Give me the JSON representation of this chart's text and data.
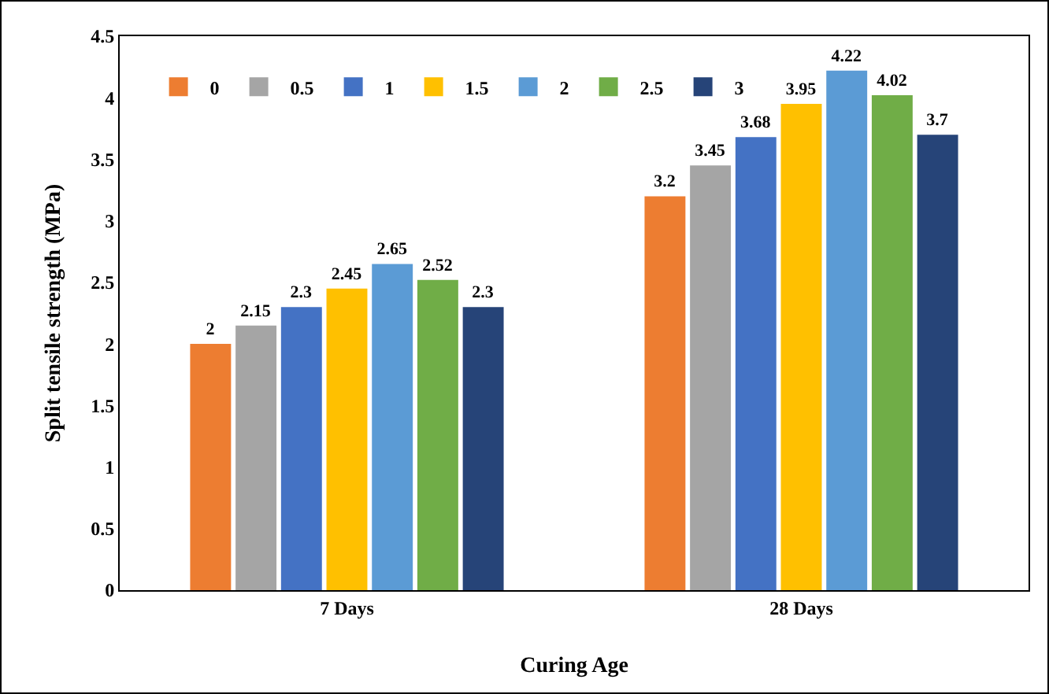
{
  "chart_data": {
    "type": "bar",
    "xlabel": "Curing Age",
    "ylabel": "Split tensile strength (MPa)",
    "categories": [
      "7 Days",
      "28 Days"
    ],
    "series": [
      {
        "name": "0",
        "color": "#ed7d31",
        "values": [
          2,
          3.2
        ]
      },
      {
        "name": "0.5",
        "color": "#a5a5a5",
        "values": [
          2.15,
          3.45
        ]
      },
      {
        "name": "1",
        "color": "#4472c4",
        "values": [
          2.3,
          3.68
        ]
      },
      {
        "name": "1.5",
        "color": "#ffc000",
        "values": [
          2.45,
          3.95
        ]
      },
      {
        "name": "2",
        "color": "#5b9bd5",
        "values": [
          2.65,
          4.22
        ]
      },
      {
        "name": "2.5",
        "color": "#70ad47",
        "values": [
          2.52,
          4.02
        ]
      },
      {
        "name": "3",
        "color": "#264478",
        "values": [
          2.3,
          3.7
        ]
      }
    ],
    "ylim": [
      0,
      4.5
    ],
    "yticks": [
      0,
      0.5,
      1,
      1.5,
      2,
      2.5,
      3,
      3.5,
      4,
      4.5
    ],
    "grid": false,
    "legend": "top left",
    "data_labels": true
  }
}
